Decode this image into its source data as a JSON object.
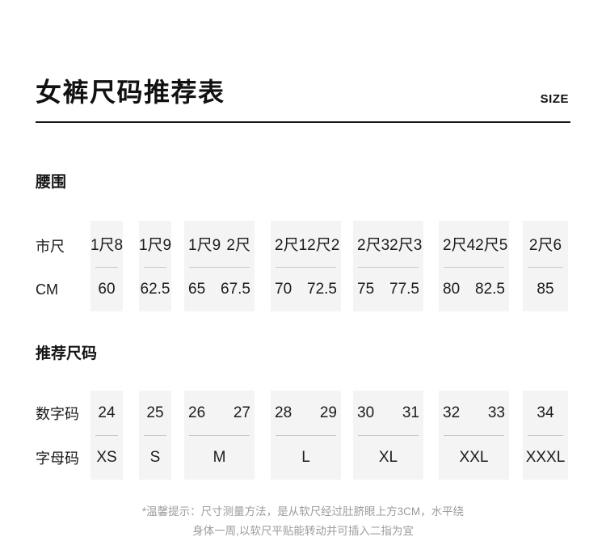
{
  "page": {
    "title": "女裤尺码推荐表",
    "size_label": "SIZE"
  },
  "waist_section": {
    "label": "腰围",
    "row_top_label": "市尺",
    "row_bottom_label": "CM",
    "columns": [
      {
        "top": [
          "1尺8"
        ],
        "bottom": [
          "60"
        ]
      },
      {
        "top": [
          "1尺9"
        ],
        "bottom": [
          "62.5"
        ]
      },
      {
        "top": [
          "1尺9",
          "2尺"
        ],
        "bottom": [
          "65",
          "67.5"
        ]
      },
      {
        "top": [
          "2尺1",
          "2尺2"
        ],
        "bottom": [
          "70",
          "72.5"
        ]
      },
      {
        "top": [
          "2尺3",
          "2尺3"
        ],
        "bottom": [
          "75",
          "77.5"
        ]
      },
      {
        "top": [
          "2尺4",
          "2尺5"
        ],
        "bottom": [
          "80",
          "82.5"
        ]
      },
      {
        "top": [
          "2尺6"
        ],
        "bottom": [
          "85"
        ]
      }
    ]
  },
  "size_section": {
    "label": "推荐尺码",
    "row_top_label": "数字码",
    "row_bottom_label": "字母码",
    "columns": [
      {
        "top": [
          "24"
        ],
        "bottom": [
          "XS"
        ]
      },
      {
        "top": [
          "25"
        ],
        "bottom": [
          "S"
        ]
      },
      {
        "top": [
          "26",
          "27"
        ],
        "bottom": [
          "M"
        ]
      },
      {
        "top": [
          "28",
          "29"
        ],
        "bottom": [
          "L"
        ]
      },
      {
        "top": [
          "30",
          "31"
        ],
        "bottom": [
          "XL"
        ]
      },
      {
        "top": [
          "32",
          "33"
        ],
        "bottom": [
          "XXL"
        ]
      },
      {
        "top": [
          "34"
        ],
        "bottom": [
          "XXXL"
        ]
      }
    ]
  },
  "footer": {
    "line1": "*温馨提示：尺寸测量方法，是从软尺经过肚脐眼上方3CM，水平绕",
    "line2": "身体一周,以软尺平贴能转动并可插入二指为宜"
  },
  "colors": {
    "background": "#ffffff",
    "box_fill": "#f4f4f5",
    "text": "#1c1c1c",
    "divider": "#c9c9c9",
    "rule": "#161616",
    "footnote": "#9c9c9c"
  }
}
